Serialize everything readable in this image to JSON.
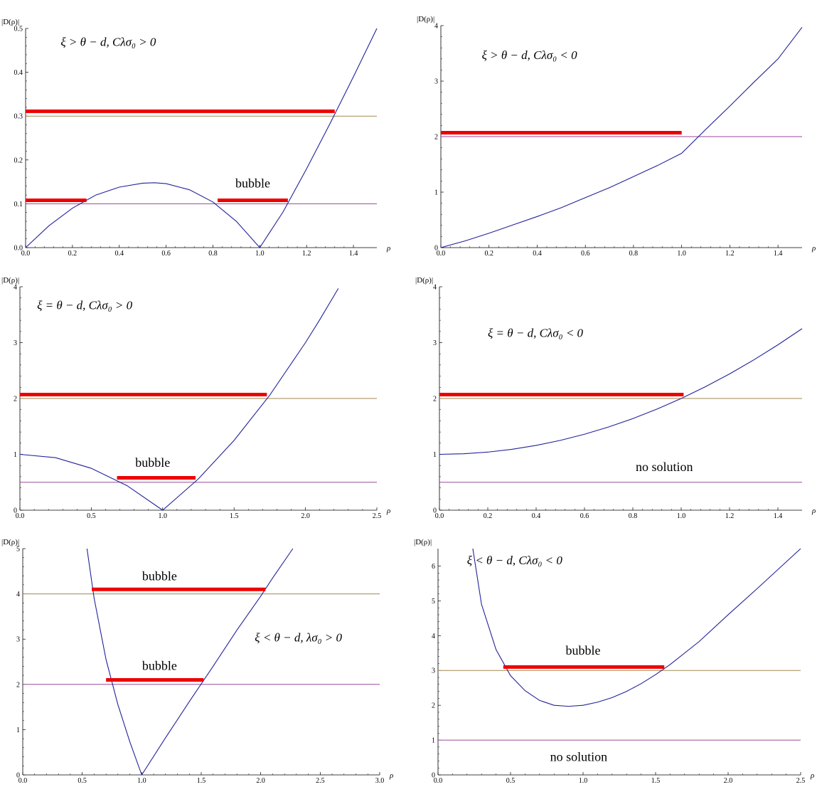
{
  "chart_data": [
    {
      "type": "line",
      "condition": "ξ > θ − d,  Cλσ₀ > 0",
      "xlabel": "ρ",
      "ylabel": "|D(ρ)|",
      "xlim": [
        0,
        1.5
      ],
      "ylim": [
        0,
        0.5
      ],
      "xticks": [
        0.0,
        0.2,
        0.4,
        0.6,
        0.8,
        1.0,
        1.2,
        1.4
      ],
      "yticks": [
        0.0,
        0.1,
        0.2,
        0.3,
        0.4,
        0.5
      ],
      "xtick_labels": [
        "0.0",
        "0.2",
        "0.4",
        "0.6",
        "0.8",
        "1.0",
        "1.2",
        "1.4"
      ],
      "ytick_labels": [
        "0.0",
        "0.1",
        "0.2",
        "0.3",
        "0.4",
        "0.5"
      ],
      "curve": {
        "x": [
          0,
          0.1,
          0.2,
          0.3,
          0.4,
          0.5,
          0.55,
          0.6,
          0.7,
          0.8,
          0.9,
          1.0,
          1.1,
          1.2,
          1.3,
          1.4,
          1.5
        ],
        "y": [
          0,
          0.05,
          0.09,
          0.12,
          0.138,
          0.147,
          0.148,
          0.146,
          0.132,
          0.104,
          0.06,
          0,
          0.082,
          0.18,
          0.283,
          0.39,
          0.5
        ]
      },
      "hlines": [
        {
          "y": 0.3,
          "color": "#a08a50"
        },
        {
          "y": 0.1,
          "color": "#9a4a9a"
        }
      ],
      "red_segments": [
        {
          "x0": 0.0,
          "x1": 1.32,
          "y": 0.311
        },
        {
          "x0": 0.0,
          "x1": 0.26,
          "y": 0.108
        },
        {
          "x0": 0.82,
          "x1": 1.12,
          "y": 0.108
        }
      ],
      "labels": [
        {
          "text": "bubble",
          "x": 0.97,
          "y": 0.137
        }
      ],
      "condition_pos": {
        "x": 0.15,
        "y": 0.46
      }
    },
    {
      "type": "line",
      "condition": "ξ > θ − d,  Cλσ₀ < 0",
      "xlabel": "ρ",
      "ylabel": "|D(ρ)|",
      "xlim": [
        0,
        1.5
      ],
      "ylim": [
        0,
        4
      ],
      "xticks": [
        0.0,
        0.2,
        0.4,
        0.6,
        0.8,
        1.0,
        1.2,
        1.4
      ],
      "yticks": [
        0,
        1,
        2,
        3,
        4
      ],
      "xtick_labels": [
        "0.0",
        "0.2",
        "0.4",
        "0.6",
        "0.8",
        "1.0",
        "1.2",
        "1.4"
      ],
      "ytick_labels": [
        "0",
        "1",
        "2",
        "3",
        "4"
      ],
      "curve": {
        "x": [
          0,
          0.1,
          0.2,
          0.3,
          0.4,
          0.5,
          0.6,
          0.7,
          0.8,
          0.9,
          1.0,
          1.1,
          1.2,
          1.3,
          1.4,
          1.5
        ],
        "y": [
          0,
          0.12,
          0.26,
          0.41,
          0.56,
          0.72,
          0.9,
          1.08,
          1.28,
          1.48,
          1.7,
          2.13,
          2.55,
          2.98,
          3.4,
          3.97
        ]
      },
      "hlines": [
        {
          "y": 2.0,
          "color": "#9a4a9a"
        }
      ],
      "red_segments": [
        {
          "x0": 0.0,
          "x1": 1.0,
          "y": 2.07
        }
      ],
      "labels": [],
      "condition_pos": {
        "x": 0.17,
        "y": 3.4
      }
    },
    {
      "type": "line",
      "condition": "ξ = θ − d,  Cλσ₀ > 0",
      "xlabel": "ρ",
      "ylabel": "|D(ρ)|",
      "xlim": [
        0,
        2.5
      ],
      "ylim": [
        0,
        4
      ],
      "xticks": [
        0.0,
        0.5,
        1.0,
        1.5,
        2.0,
        2.5
      ],
      "yticks": [
        0,
        1,
        2,
        3,
        4
      ],
      "xtick_labels": [
        "0.0",
        "0.5",
        "1.0",
        "1.5",
        "2.0",
        "2.5"
      ],
      "ytick_labels": [
        "0",
        "1",
        "2",
        "3",
        "4"
      ],
      "curve": {
        "x": [
          0,
          0.25,
          0.5,
          0.75,
          1.0,
          1.25,
          1.5,
          1.75,
          2.0,
          2.1,
          2.23
        ],
        "y": [
          1.0,
          0.94,
          0.75,
          0.44,
          0,
          0.56,
          1.25,
          2.06,
          3.0,
          3.41,
          3.97
        ]
      },
      "hlines": [
        {
          "y": 2.0,
          "color": "#a08a50"
        },
        {
          "y": 0.5,
          "color": "#9a4a9a"
        }
      ],
      "red_segments": [
        {
          "x0": 0.0,
          "x1": 1.73,
          "y": 2.07
        },
        {
          "x0": 0.68,
          "x1": 1.23,
          "y": 0.58
        }
      ],
      "labels": [
        {
          "text": "bubble",
          "x": 0.93,
          "y": 0.78
        }
      ],
      "condition_pos": {
        "x": 0.12,
        "y": 3.6
      }
    },
    {
      "type": "line",
      "condition": "ξ = θ − d,  Cλσ₀ < 0",
      "xlabel": "ρ",
      "ylabel": "|D(ρ)|",
      "xlim": [
        0,
        1.5
      ],
      "ylim": [
        0,
        4
      ],
      "xticks": [
        0.0,
        0.2,
        0.4,
        0.6,
        0.8,
        1.0,
        1.2,
        1.4
      ],
      "yticks": [
        0,
        1,
        2,
        3,
        4
      ],
      "xtick_labels": [
        "0.0",
        "0.2",
        "0.4",
        "0.6",
        "0.8",
        "1.0",
        "1.2",
        "1.4"
      ],
      "ytick_labels": [
        "0",
        "1",
        "2",
        "3",
        "4"
      ],
      "curve": {
        "x": [
          0,
          0.1,
          0.2,
          0.3,
          0.4,
          0.5,
          0.6,
          0.7,
          0.8,
          0.9,
          1.0,
          1.1,
          1.2,
          1.3,
          1.4,
          1.5
        ],
        "y": [
          1.0,
          1.01,
          1.04,
          1.09,
          1.16,
          1.25,
          1.36,
          1.49,
          1.64,
          1.81,
          2.0,
          2.21,
          2.44,
          2.69,
          2.96,
          3.25
        ]
      },
      "hlines": [
        {
          "y": 2.0,
          "color": "#a08a50"
        },
        {
          "y": 0.5,
          "color": "#9a4a9a"
        }
      ],
      "red_segments": [
        {
          "x0": 0.0,
          "x1": 1.01,
          "y": 2.07
        }
      ],
      "labels": [
        {
          "text": "no solution",
          "x": 0.93,
          "y": 0.7
        }
      ],
      "condition_pos": {
        "x": 0.2,
        "y": 3.1
      }
    },
    {
      "type": "line",
      "condition": "ξ < θ − d,  λσ₀ > 0",
      "xlabel": "ρ",
      "ylabel": "|D(ρ)|",
      "xlim": [
        0,
        3.0
      ],
      "ylim": [
        0,
        5
      ],
      "xticks": [
        0.0,
        0.5,
        1.0,
        1.5,
        2.0,
        2.5,
        3.0
      ],
      "yticks": [
        0,
        1,
        2,
        3,
        4,
        5
      ],
      "xtick_labels": [
        "0.0",
        "0.5",
        "1.0",
        "1.5",
        "2.0",
        "2.5",
        "3.0"
      ],
      "ytick_labels": [
        "0",
        "1",
        "2",
        "3",
        "4",
        "5"
      ],
      "curve_segments": [
        {
          "x": [
            0.54,
            0.6,
            0.7,
            0.8,
            0.9,
            1.0
          ],
          "y": [
            5.0,
            3.9,
            2.55,
            1.55,
            0.73,
            0
          ]
        },
        {
          "x": [
            1.0,
            1.2,
            1.4,
            1.6,
            1.8,
            2.0,
            2.1,
            2.27
          ],
          "y": [
            0,
            0.82,
            1.62,
            2.4,
            3.2,
            3.95,
            4.35,
            5.0
          ]
        }
      ],
      "hlines": [
        {
          "y": 4.0,
          "color": "#a08a50"
        },
        {
          "y": 2.0,
          "color": "#9a4a9a"
        }
      ],
      "red_segments": [
        {
          "x0": 0.58,
          "x1": 2.04,
          "y": 4.1
        },
        {
          "x0": 0.7,
          "x1": 1.52,
          "y": 2.1
        }
      ],
      "labels": [
        {
          "text": "bubble",
          "x": 1.15,
          "y": 4.3
        },
        {
          "text": "bubble",
          "x": 1.15,
          "y": 2.32
        }
      ],
      "condition_pos": {
        "x": 1.95,
        "y": 2.95
      }
    },
    {
      "type": "line",
      "condition": "ξ < θ − d,  Cλσ₀ < 0",
      "xlabel": "ρ",
      "ylabel": "|D(ρ)|",
      "xlim": [
        0,
        2.5
      ],
      "ylim": [
        0,
        6.5
      ],
      "xticks": [
        0.0,
        0.5,
        1.0,
        1.5,
        2.0,
        2.5
      ],
      "yticks": [
        0,
        1,
        2,
        3,
        4,
        5,
        6
      ],
      "xtick_labels": [
        "0.0",
        "0.5",
        "1.0",
        "1.5",
        "2.0",
        "2.5"
      ],
      "ytick_labels": [
        "0",
        "1",
        "2",
        "3",
        "4",
        "5",
        "6"
      ],
      "curve": {
        "x": [
          0.24,
          0.3,
          0.4,
          0.5,
          0.6,
          0.7,
          0.8,
          0.9,
          1.0,
          1.1,
          1.2,
          1.3,
          1.4,
          1.5,
          1.6,
          1.8,
          2.0,
          2.2,
          2.5
        ],
        "y": [
          6.5,
          4.9,
          3.6,
          2.85,
          2.42,
          2.14,
          2.0,
          1.97,
          2.0,
          2.09,
          2.22,
          2.4,
          2.62,
          2.88,
          3.17,
          3.83,
          4.6,
          5.35,
          6.5
        ]
      },
      "hlines": [
        {
          "y": 3.0,
          "color": "#a08a50"
        },
        {
          "y": 1.0,
          "color": "#9a4a9a"
        }
      ],
      "red_segments": [
        {
          "x0": 0.45,
          "x1": 1.56,
          "y": 3.1
        }
      ],
      "labels": [
        {
          "text": "bubble",
          "x": 1.0,
          "y": 3.45
        },
        {
          "text": "no solution",
          "x": 0.97,
          "y": 0.4
        }
      ],
      "condition_pos": {
        "x": 0.2,
        "y": 6.05
      }
    }
  ]
}
